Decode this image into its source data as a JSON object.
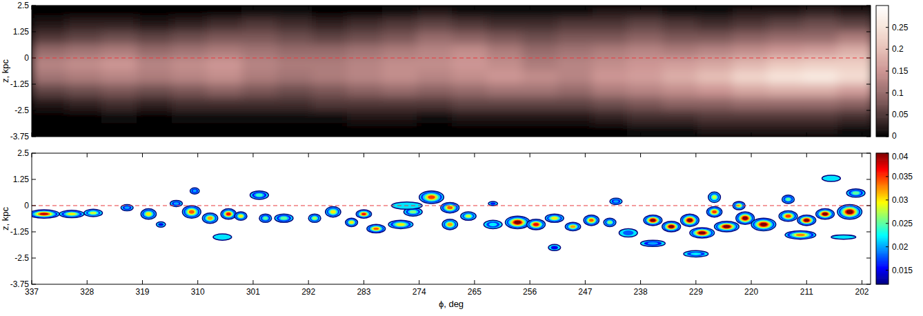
{
  "chart_data": [
    {
      "type": "heatmap",
      "ylabel": "z, kpc",
      "color": "pink",
      "tick_labels": "y",
      "xlim": [
        337,
        200.6
      ],
      "ylim": [
        -3.75,
        2.5
      ],
      "xticks": [
        337,
        328,
        319,
        310,
        301,
        292,
        283,
        274,
        265,
        256,
        247,
        238,
        229,
        220,
        211,
        202
      ],
      "yticks": [
        2.5,
        1.25,
        0,
        -1.25,
        -2.5,
        -3.75
      ],
      "hline": 0,
      "x_bins": [
        337,
        331.3,
        325.6,
        319.9,
        314.2,
        308.5,
        302.8,
        297.1,
        291.4,
        285.7,
        280,
        274.3,
        268.6,
        262.9,
        257.2,
        251.5,
        245.8,
        240.1,
        234.4,
        228.7,
        223,
        217.3,
        211.6,
        205.9,
        200.2
      ],
      "y_bins": [
        2.5,
        1.875,
        1.25,
        0.625,
        0,
        -0.625,
        -1.25,
        -1.875,
        -2.5,
        -3.125,
        -3.75
      ],
      "cells": [
        [
          0,
          0,
          0,
          0,
          0,
          0,
          0.01,
          0.01,
          0,
          0,
          0.01,
          0.02,
          0.01,
          0.01,
          0.01,
          0.01,
          0.02,
          0.02,
          0.01,
          0.01,
          0.02,
          0.02,
          0.03,
          0.02
        ],
        [
          0.02,
          0.03,
          0.03,
          0.02,
          0.03,
          0.04,
          0.05,
          0.04,
          0.03,
          0.04,
          0.05,
          0.06,
          0.05,
          0.04,
          0.04,
          0.05,
          0.05,
          0.06,
          0.05,
          0.04,
          0.05,
          0.06,
          0.07,
          0.06
        ],
        [
          0.05,
          0.06,
          0.07,
          0.06,
          0.07,
          0.08,
          0.08,
          0.07,
          0.06,
          0.07,
          0.08,
          0.1,
          0.09,
          0.08,
          0.07,
          0.08,
          0.08,
          0.09,
          0.08,
          0.08,
          0.09,
          0.1,
          0.1,
          0.12
        ],
        [
          0.1,
          0.11,
          0.12,
          0.1,
          0.11,
          0.12,
          0.11,
          0.1,
          0.1,
          0.11,
          0.12,
          0.13,
          0.14,
          0.12,
          0.1,
          0.11,
          0.12,
          0.13,
          0.12,
          0.13,
          0.14,
          0.15,
          0.16,
          0.18
        ],
        [
          0.13,
          0.14,
          0.15,
          0.13,
          0.14,
          0.15,
          0.13,
          0.12,
          0.12,
          0.13,
          0.14,
          0.14,
          0.15,
          0.14,
          0.12,
          0.13,
          0.14,
          0.15,
          0.16,
          0.17,
          0.19,
          0.21,
          0.22,
          0.22
        ],
        [
          0.11,
          0.12,
          0.13,
          0.12,
          0.13,
          0.14,
          0.12,
          0.11,
          0.12,
          0.13,
          0.14,
          0.13,
          0.14,
          0.15,
          0.14,
          0.13,
          0.15,
          0.16,
          0.18,
          0.2,
          0.23,
          0.25,
          0.26,
          0.24
        ],
        [
          0.06,
          0.07,
          0.08,
          0.07,
          0.08,
          0.09,
          0.08,
          0.07,
          0.08,
          0.09,
          0.1,
          0.09,
          0.1,
          0.11,
          0.11,
          0.1,
          0.12,
          0.13,
          0.14,
          0.15,
          0.17,
          0.18,
          0.18,
          0.16
        ],
        [
          0.02,
          0.03,
          0.04,
          0.03,
          0.04,
          0.04,
          0.04,
          0.04,
          0.05,
          0.05,
          0.05,
          0.05,
          0.06,
          0.06,
          0.06,
          0.06,
          0.07,
          0.08,
          0.09,
          0.09,
          0.1,
          0.1,
          0.1,
          0.09
        ],
        [
          0,
          0,
          0.01,
          0,
          0.01,
          0.01,
          0.01,
          0.01,
          0.01,
          0.02,
          0.02,
          0.01,
          0.02,
          0.02,
          0.02,
          0.02,
          0.03,
          0.04,
          0.04,
          0.05,
          0.05,
          0.05,
          0.05,
          0.04
        ],
        [
          0,
          0,
          0,
          0,
          0,
          0,
          0,
          0,
          0,
          0,
          0,
          0,
          0,
          0,
          0,
          0,
          0,
          0.01,
          0.01,
          0.02,
          0.02,
          0.02,
          0.02,
          0.01
        ]
      ],
      "color_range": [
        0,
        0.3
      ],
      "color_ticks": [
        0,
        0.05,
        0.1,
        0.15,
        0.2,
        0.25
      ]
    },
    {
      "type": "bubble",
      "xlabel": "ϕ, deg",
      "ylabel": "z, kpc",
      "color": "jet",
      "xlim": [
        337,
        200.6
      ],
      "ylim": [
        -3.75,
        2.5
      ],
      "xticks": [
        337,
        328,
        319,
        310,
        301,
        292,
        283,
        274,
        265,
        256,
        247,
        238,
        229,
        220,
        211,
        202
      ],
      "yticks": [
        2.5,
        1.25,
        0,
        -1.25,
        -2.5,
        -3.75
      ],
      "hline": 0,
      "x": [
        335,
        330.5,
        327,
        321.5,
        318,
        316,
        313.5,
        311,
        308,
        305,
        303,
        310.5,
        306,
        299,
        296,
        300,
        291,
        288,
        285,
        283,
        281,
        277,
        275,
        276,
        272,
        269,
        269,
        266,
        262,
        258,
        255,
        252,
        249,
        246,
        243,
        252,
        240,
        236,
        233,
        230,
        228,
        226,
        224,
        221,
        218,
        214,
        211,
        208,
        204,
        212,
        205,
        229,
        236,
        226,
        214,
        207,
        203,
        242,
        262,
        222
      ],
      "y": [
        -0.4,
        -0.4,
        -0.35,
        -0.1,
        -0.4,
        -0.9,
        0.1,
        -0.3,
        -0.6,
        -0.4,
        -0.5,
        0.7,
        -1.5,
        -0.6,
        -0.6,
        0.5,
        -0.6,
        -0.3,
        -0.8,
        -0.4,
        -1.1,
        -0.9,
        -0.3,
        0,
        0.4,
        -0.1,
        -0.9,
        -0.5,
        -0.9,
        -0.8,
        -0.9,
        -0.6,
        -1,
        -0.7,
        -0.8,
        -2,
        -1.3,
        -0.7,
        -1,
        -0.7,
        -1.3,
        -0.3,
        -1,
        -0.6,
        -0.9,
        -0.5,
        -0.7,
        -0.4,
        -0.3,
        -1.4,
        -1.5,
        -2.3,
        -1.8,
        0.4,
        0.3,
        1.3,
        0.6,
        0.2,
        0.1,
        0
      ],
      "width": [
        5,
        4,
        3,
        2,
        2.5,
        1.5,
        2,
        3,
        2.5,
        2.5,
        2,
        1.5,
        3,
        2,
        3,
        3,
        2,
        2.5,
        2,
        2.5,
        3,
        4,
        3,
        5,
        4,
        3,
        2.5,
        2.5,
        3,
        4,
        3,
        3,
        2.5,
        2.5,
        2,
        2,
        3,
        3,
        3,
        3,
        4,
        2.5,
        4,
        3,
        4,
        3,
        3,
        3,
        4,
        5,
        4,
        4,
        4,
        2,
        2,
        3,
        3,
        2,
        1.5,
        2
      ],
      "height": [
        0.4,
        0.35,
        0.35,
        0.3,
        0.5,
        0.25,
        0.3,
        0.6,
        0.5,
        0.5,
        0.4,
        0.3,
        0.3,
        0.4,
        0.4,
        0.4,
        0.4,
        0.5,
        0.4,
        0.4,
        0.4,
        0.4,
        0.4,
        0.35,
        0.6,
        0.5,
        0.5,
        0.4,
        0.4,
        0.6,
        0.5,
        0.4,
        0.4,
        0.5,
        0.4,
        0.3,
        0.4,
        0.5,
        0.5,
        0.6,
        0.5,
        0.5,
        0.5,
        0.6,
        0.6,
        0.5,
        0.5,
        0.5,
        0.7,
        0.4,
        0.2,
        0.3,
        0.3,
        0.5,
        0.4,
        0.3,
        0.4,
        0.3,
        0.2,
        0.4
      ],
      "values": [
        0.038,
        0.03,
        0.028,
        0.02,
        0.03,
        0.015,
        0.02,
        0.034,
        0.032,
        0.036,
        0.03,
        0.02,
        0.013,
        0.025,
        0.025,
        0.024,
        0.027,
        0.03,
        0.03,
        0.036,
        0.034,
        0.03,
        0.026,
        0.013,
        0.035,
        0.034,
        0.032,
        0.028,
        0.022,
        0.04,
        0.037,
        0.03,
        0.032,
        0.034,
        0.026,
        0.015,
        0.018,
        0.04,
        0.04,
        0.04,
        0.04,
        0.035,
        0.04,
        0.04,
        0.04,
        0.035,
        0.04,
        0.04,
        0.04,
        0.033,
        0.013,
        0.022,
        0.02,
        0.028,
        0.025,
        0.013,
        0.025,
        0.02,
        0.016,
        0.03
      ],
      "color_range": [
        0.012,
        0.04
      ],
      "color_ticks": [
        0.015,
        0.02,
        0.025,
        0.03,
        0.035,
        0.04
      ]
    }
  ]
}
